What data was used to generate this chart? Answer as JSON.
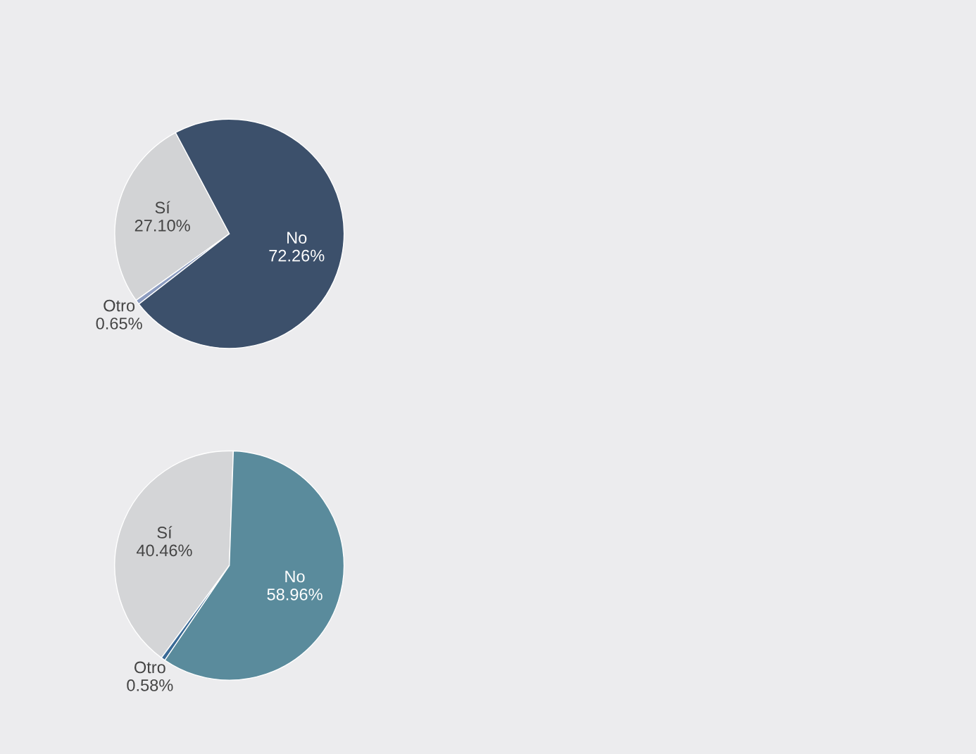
{
  "chart_data": [
    {
      "type": "pie",
      "categories": [
        "Sí",
        "Otro",
        "No"
      ],
      "values": [
        27.1,
        0.65,
        72.26
      ],
      "value_labels": [
        "27.10%",
        "0.65%",
        "72.26%"
      ],
      "colors": [
        "#d2d3d5",
        "#8c9cc0",
        "#3c506b"
      ]
    },
    {
      "type": "pie",
      "categories": [
        "Sí",
        "Otro",
        "No"
      ],
      "values": [
        40.46,
        0.58,
        58.96
      ],
      "value_labels": [
        "40.46%",
        "0.58%",
        "58.96%"
      ],
      "colors": [
        "#d4d5d7",
        "#3a6a96",
        "#5a8b9c"
      ]
    }
  ]
}
